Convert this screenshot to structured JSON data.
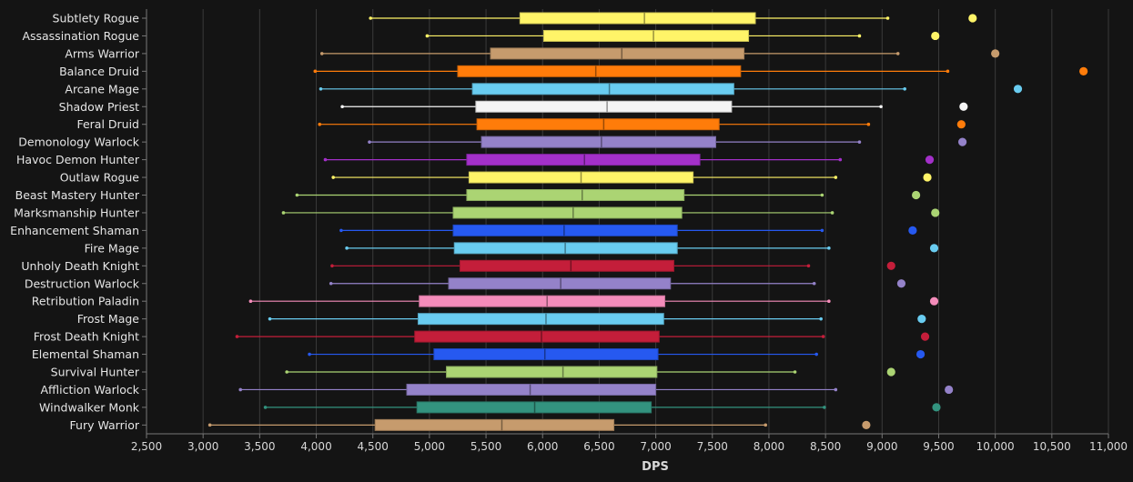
{
  "chart_data": {
    "type": "boxplot",
    "xlabel": "DPS",
    "ylabel": "",
    "xlim": [
      2500,
      11000
    ],
    "x_ticks": [
      "2,500",
      "3,000",
      "3,500",
      "4,000",
      "4,500",
      "5,000",
      "5,500",
      "6,000",
      "6,500",
      "7,000",
      "7,500",
      "8,000",
      "8,500",
      "9,000",
      "9,500",
      "10,000",
      "10,500",
      "11,000"
    ],
    "x_tick_values": [
      2500,
      3000,
      3500,
      4000,
      4500,
      5000,
      5500,
      6000,
      6500,
      7000,
      7500,
      8000,
      8500,
      9000,
      9500,
      10000,
      10500,
      11000
    ],
    "grid": "vertical",
    "series": [
      {
        "spec": "Subtlety Rogue",
        "color": "#fff468",
        "min": 4480,
        "q1": 5800,
        "median": 6900,
        "q3": 7880,
        "max": 9050,
        "max_dot": 9800
      },
      {
        "spec": "Assassination Rogue",
        "color": "#fff468",
        "min": 4980,
        "q1": 6010,
        "median": 6980,
        "q3": 7820,
        "max": 8800,
        "max_dot": 9470
      },
      {
        "spec": "Arms Warrior",
        "color": "#c69b6d",
        "min": 4050,
        "q1": 5540,
        "median": 6700,
        "q3": 7780,
        "max": 9140,
        "max_dot": 10000
      },
      {
        "spec": "Balance Druid",
        "color": "#ff7c0a",
        "min": 3990,
        "q1": 5250,
        "median": 6470,
        "q3": 7750,
        "max": 9580,
        "max_dot": 10780
      },
      {
        "spec": "Arcane Mage",
        "color": "#69ccf0",
        "min": 4040,
        "q1": 5380,
        "median": 6590,
        "q3": 7690,
        "max": 9200,
        "max_dot": 10200
      },
      {
        "spec": "Shadow Priest",
        "color": "#f4f4f4",
        "min": 4230,
        "q1": 5410,
        "median": 6570,
        "q3": 7670,
        "max": 8990,
        "max_dot": 9720
      },
      {
        "spec": "Feral Druid",
        "color": "#ff7c0a",
        "min": 4030,
        "q1": 5420,
        "median": 6540,
        "q3": 7560,
        "max": 8880,
        "max_dot": 9700
      },
      {
        "spec": "Demonology Warlock",
        "color": "#9482c9",
        "min": 4470,
        "q1": 5460,
        "median": 6520,
        "q3": 7530,
        "max": 8800,
        "max_dot": 9710
      },
      {
        "spec": "Havoc Demon Hunter",
        "color": "#a330c9",
        "min": 4080,
        "q1": 5330,
        "median": 6370,
        "q3": 7390,
        "max": 8630,
        "max_dot": 9420
      },
      {
        "spec": "Outlaw Rogue",
        "color": "#fff468",
        "min": 4150,
        "q1": 5350,
        "median": 6340,
        "q3": 7330,
        "max": 8590,
        "max_dot": 9400
      },
      {
        "spec": "Beast Mastery Hunter",
        "color": "#abd473",
        "min": 3830,
        "q1": 5330,
        "median": 6350,
        "q3": 7250,
        "max": 8470,
        "max_dot": 9300
      },
      {
        "spec": "Marksmanship Hunter",
        "color": "#abd473",
        "min": 3710,
        "q1": 5210,
        "median": 6270,
        "q3": 7230,
        "max": 8560,
        "max_dot": 9470
      },
      {
        "spec": "Enhancement Shaman",
        "color": "#2659f0",
        "min": 4220,
        "q1": 5210,
        "median": 6190,
        "q3": 7190,
        "max": 8470,
        "max_dot": 9270
      },
      {
        "spec": "Fire Mage",
        "color": "#69ccf0",
        "min": 4270,
        "q1": 5220,
        "median": 6200,
        "q3": 7190,
        "max": 8530,
        "max_dot": 9460
      },
      {
        "spec": "Unholy Death Knight",
        "color": "#c41e3a",
        "min": 4140,
        "q1": 5270,
        "median": 6250,
        "q3": 7160,
        "max": 8350,
        "max_dot": 9080
      },
      {
        "spec": "Destruction Warlock",
        "color": "#9482c9",
        "min": 4130,
        "q1": 5170,
        "median": 6160,
        "q3": 7130,
        "max": 8400,
        "max_dot": 9170
      },
      {
        "spec": "Retribution Paladin",
        "color": "#f48cba",
        "min": 3420,
        "q1": 4910,
        "median": 6040,
        "q3": 7080,
        "max": 8530,
        "max_dot": 9460
      },
      {
        "spec": "Frost Mage",
        "color": "#69ccf0",
        "min": 3590,
        "q1": 4900,
        "median": 6030,
        "q3": 7070,
        "max": 8460,
        "max_dot": 9350
      },
      {
        "spec": "Frost Death Knight",
        "color": "#c41e3a",
        "min": 3300,
        "q1": 4870,
        "median": 5990,
        "q3": 7030,
        "max": 8480,
        "max_dot": 9380
      },
      {
        "spec": "Elemental Shaman",
        "color": "#2659f0",
        "min": 3940,
        "q1": 5040,
        "median": 6020,
        "q3": 7020,
        "max": 8420,
        "max_dot": 9340
      },
      {
        "spec": "Survival Hunter",
        "color": "#abd473",
        "min": 3740,
        "q1": 5150,
        "median": 6180,
        "q3": 7010,
        "max": 8230,
        "max_dot": 9080
      },
      {
        "spec": "Affliction Warlock",
        "color": "#9482c9",
        "min": 3330,
        "q1": 4800,
        "median": 5890,
        "q3": 7000,
        "max": 8590,
        "max_dot": 9590
      },
      {
        "spec": "Windwalker Monk",
        "color": "#33937f",
        "min": 3550,
        "q1": 4890,
        "median": 5930,
        "q3": 6960,
        "max": 8490,
        "max_dot": 9480
      },
      {
        "spec": "Fury Warrior",
        "color": "#c69b6d",
        "min": 3060,
        "q1": 4520,
        "median": 5640,
        "q3": 6630,
        "max": 7970,
        "max_dot": 8860
      }
    ]
  }
}
